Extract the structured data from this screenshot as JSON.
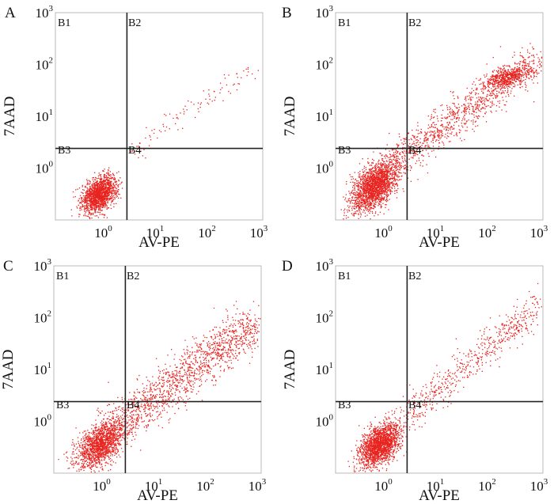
{
  "chart_data": {
    "type": "scatter",
    "description_axis": "log10 axes; data values are decimal exponents",
    "shared": {
      "xlabel": "AV-PE",
      "ylabel": "7AAD",
      "x_tick_base": "10",
      "x_tick_exponents": [
        "0",
        "1",
        "2",
        "3"
      ],
      "y_tick_base": "10",
      "y_tick_exponents": [
        "0",
        "1",
        "2",
        "3"
      ],
      "xlim_log10": [
        -1,
        3
      ],
      "ylim_log10": [
        -1,
        3
      ],
      "quadrant_labels": [
        "B1",
        "B2",
        "B3",
        "B4"
      ],
      "dot_color": "#e8231f",
      "line_color": "#222222"
    },
    "panels": [
      {
        "letter": "A",
        "gate_x_log10": 0.38,
        "gate_y_log10": 0.38,
        "point_count": 1600,
        "clusters": [
          {
            "n": 1500,
            "cx": -0.15,
            "cy": -0.5,
            "sx": 0.17,
            "sy": 0.18,
            "rho": 0.4
          },
          {
            "n": 100,
            "line": [
              [
                0.35,
                0.25
              ],
              [
                2.75,
                1.9
              ]
            ],
            "spread": 0.1
          }
        ]
      },
      {
        "letter": "B",
        "gate_x_log10": 0.38,
        "gate_y_log10": 0.38,
        "point_count": 3500,
        "clusters": [
          {
            "n": 1900,
            "cx": -0.25,
            "cy": -0.35,
            "sx": 0.22,
            "sy": 0.24,
            "rho": 0.5
          },
          {
            "n": 1100,
            "line": [
              [
                0.0,
                0.0
              ],
              [
                2.9,
                2.1
              ]
            ],
            "spread": 0.17
          },
          {
            "n": 500,
            "cx": 2.3,
            "cy": 1.75,
            "sx": 0.22,
            "sy": 0.1,
            "rho": 0.5
          }
        ]
      },
      {
        "letter": "C",
        "gate_x_log10": 0.38,
        "gate_y_log10": 0.38,
        "point_count": 2900,
        "clusters": [
          {
            "n": 1500,
            "cx": -0.1,
            "cy": -0.45,
            "sx": 0.24,
            "sy": 0.24,
            "rho": 0.5
          },
          {
            "n": 1400,
            "line": [
              [
                0.2,
                -0.1
              ],
              [
                2.9,
                1.9
              ]
            ],
            "spread": 0.2
          }
        ]
      },
      {
        "letter": "D",
        "gate_x_log10": 0.38,
        "gate_y_log10": 0.38,
        "point_count": 2400,
        "clusters": [
          {
            "n": 1800,
            "cx": -0.15,
            "cy": -0.45,
            "sx": 0.19,
            "sy": 0.21,
            "rho": 0.45
          },
          {
            "n": 600,
            "line": [
              [
                0.3,
                0.05
              ],
              [
                3.0,
                2.3
              ]
            ],
            "spread": 0.15
          }
        ]
      }
    ]
  }
}
